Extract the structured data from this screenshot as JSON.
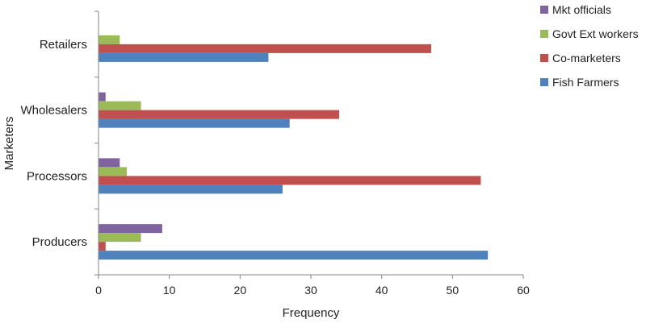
{
  "chart_data": {
    "type": "bar",
    "orientation": "horizontal",
    "xlabel": "Frequency",
    "ylabel": "Marketers",
    "xlim": [
      0,
      60
    ],
    "xticks": [
      0,
      10,
      20,
      30,
      40,
      50,
      60
    ],
    "categories": [
      "Retailers",
      "Wholesalers",
      "Processors",
      "Producers"
    ],
    "series": [
      {
        "name": "Mkt officials",
        "color": "#8064A2",
        "values": [
          0,
          1,
          3,
          9
        ]
      },
      {
        "name": "Govt Ext workers",
        "color": "#9BBB59",
        "values": [
          3,
          6,
          4,
          6
        ]
      },
      {
        "name": "Co-marketers",
        "color": "#C0504D",
        "values": [
          47,
          34,
          54,
          1
        ]
      },
      {
        "name": "Fish Farmers",
        "color": "#4F81BD",
        "values": [
          24,
          27,
          26,
          55
        ]
      }
    ],
    "grid": false,
    "legend_position": "right"
  }
}
